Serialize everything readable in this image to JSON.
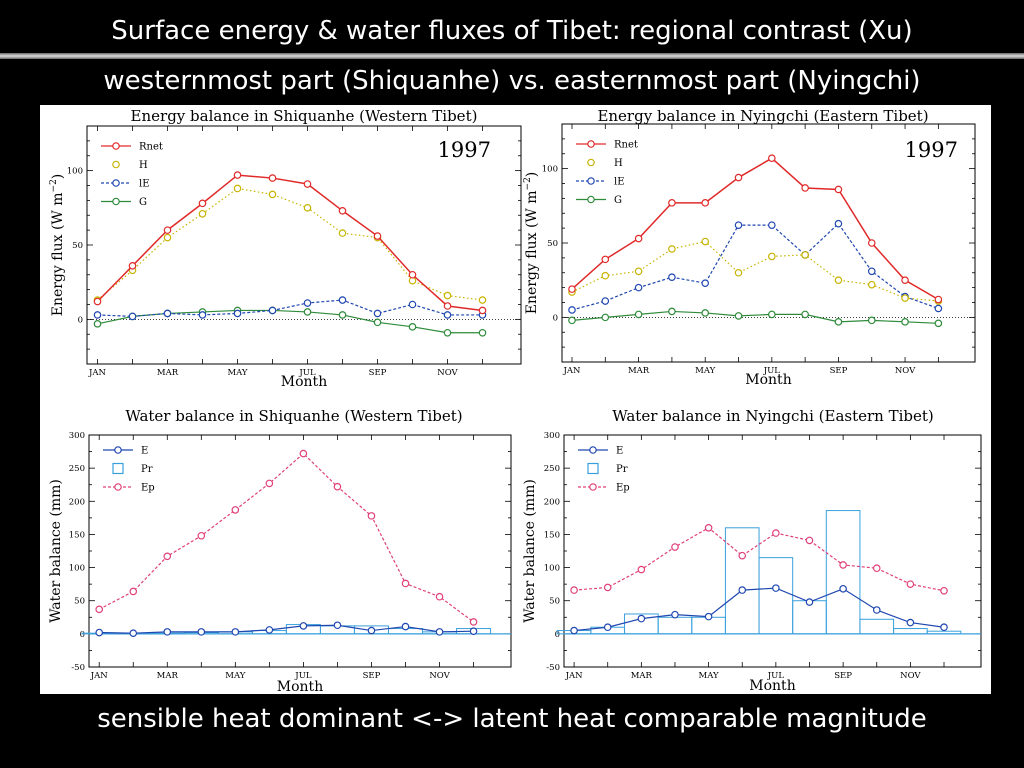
{
  "slide": {
    "title": "Surface energy & water fluxes of Tibet: regional contrast (Xu)",
    "subtitle": "westernmost part (Shiquanhe) vs. easternmost part (Nyingchi)",
    "footer": "sensible heat dominant <-> latent heat comparable magnitude"
  },
  "colors": {
    "Rnet": "#e02a2a",
    "H": "#c8b400",
    "lE": "#1f47b0",
    "G": "#2e8b3a",
    "E": "#1f47b0",
    "Pr": "#3aa0dc",
    "Ep": "#e0407a"
  },
  "chart_data": [
    {
      "type": "line",
      "title": "Energy balance in Shiquanhe (Western Tibet)",
      "annotation": "1997",
      "xlabel": "Month",
      "ylabel": "Energy flux (W m",
      "ylabel_sup": "−2",
      "ylabel_end": ")",
      "ylim": [
        -30,
        130
      ],
      "yticks": [
        0,
        50,
        100
      ],
      "xtick_labels": [
        "JAN",
        "MAR",
        "MAY",
        "JUL",
        "SEP",
        "NOV"
      ],
      "x": [
        1,
        2,
        3,
        4,
        5,
        6,
        7,
        8,
        9,
        10,
        11,
        12
      ],
      "series": [
        {
          "name": "Rnet",
          "style": "solid",
          "values": [
            12,
            36,
            60,
            78,
            97,
            95,
            91,
            73,
            56,
            30,
            9,
            6
          ]
        },
        {
          "name": "H",
          "style": "dotted",
          "values": [
            13,
            33,
            55,
            71,
            88,
            84,
            75,
            58,
            55,
            26,
            16,
            13
          ]
        },
        {
          "name": "lE",
          "style": "dashed",
          "values": [
            3,
            2,
            4,
            3,
            4,
            6,
            11,
            13,
            4,
            10,
            3,
            3
          ]
        },
        {
          "name": "G",
          "style": "solid",
          "values": [
            -3,
            2,
            4,
            5,
            6,
            6,
            5,
            3,
            -2,
            -5,
            -9,
            -9
          ]
        }
      ]
    },
    {
      "type": "line",
      "title": "Energy balance in Nyingchi (Eastern Tibet)",
      "annotation": "1997",
      "xlabel": "Month",
      "ylabel": "Energy flux (W m",
      "ylabel_sup": "−2",
      "ylabel_end": ")",
      "ylim": [
        -30,
        130
      ],
      "yticks": [
        0,
        50,
        100
      ],
      "xtick_labels": [
        "JAN",
        "MAR",
        "MAY",
        "JUL",
        "SEP",
        "NOV"
      ],
      "x": [
        1,
        2,
        3,
        4,
        5,
        6,
        7,
        8,
        9,
        10,
        11,
        12
      ],
      "series": [
        {
          "name": "Rnet",
          "style": "solid",
          "values": [
            19,
            39,
            53,
            77,
            77,
            94,
            107,
            87,
            86,
            50,
            25,
            12
          ]
        },
        {
          "name": "H",
          "style": "dotted",
          "values": [
            17,
            28,
            31,
            46,
            51,
            30,
            41,
            42,
            25,
            22,
            13,
            11
          ]
        },
        {
          "name": "lE",
          "style": "dashed",
          "values": [
            5,
            11,
            20,
            27,
            23,
            62,
            62,
            42,
            63,
            31,
            14,
            6
          ]
        },
        {
          "name": "G",
          "style": "solid",
          "values": [
            -2,
            0,
            2,
            4,
            3,
            1,
            2,
            2,
            -3,
            -2,
            -3,
            -4
          ]
        }
      ]
    },
    {
      "type": "line",
      "title": "Water balance in Shiquanhe (Western Tibet)",
      "xlabel": "Month",
      "ylabel": "Water balance (mm)",
      "ylim": [
        -50,
        300
      ],
      "yticks": [
        -50,
        0,
        50,
        100,
        150,
        200,
        250,
        300
      ],
      "xtick_labels": [
        "JAN",
        "MAR",
        "MAY",
        "JUL",
        "SEP",
        "NOV"
      ],
      "x": [
        1,
        2,
        3,
        4,
        5,
        6,
        7,
        8,
        9,
        10,
        11,
        12
      ],
      "bars": {
        "name": "Pr",
        "values": [
          1,
          1,
          1,
          2,
          3,
          5,
          14,
          12,
          12,
          8,
          3,
          8
        ]
      },
      "series": [
        {
          "name": "E",
          "style": "solid",
          "values": [
            2,
            1,
            3,
            3,
            3,
            6,
            12,
            13,
            5,
            11,
            3,
            4
          ]
        },
        {
          "name": "Ep",
          "style": "dashed",
          "values": [
            37,
            64,
            117,
            148,
            187,
            227,
            272,
            222,
            178,
            76,
            56,
            18
          ]
        }
      ]
    },
    {
      "type": "line",
      "title": "Water balance in Nyingchi (Eastern Tibet)",
      "xlabel": "Month",
      "ylabel": "Water balance (mm)",
      "ylim": [
        -50,
        300
      ],
      "yticks": [
        -50,
        0,
        50,
        100,
        150,
        200,
        250,
        300
      ],
      "xtick_labels": [
        "JAN",
        "MAR",
        "MAY",
        "JUL",
        "SEP",
        "NOV"
      ],
      "x": [
        1,
        2,
        3,
        4,
        5,
        6,
        7,
        8,
        9,
        10,
        11,
        12
      ],
      "bars": {
        "name": "Pr",
        "values": [
          5,
          10,
          30,
          25,
          25,
          160,
          115,
          50,
          186,
          22,
          8,
          4
        ]
      },
      "series": [
        {
          "name": "E",
          "style": "solid",
          "values": [
            5,
            10,
            23,
            29,
            26,
            66,
            69,
            48,
            68,
            36,
            17,
            10
          ]
        },
        {
          "name": "Ep",
          "style": "dashed",
          "values": [
            66,
            70,
            97,
            131,
            160,
            118,
            152,
            141,
            104,
            99,
            75,
            65
          ]
        }
      ]
    }
  ]
}
